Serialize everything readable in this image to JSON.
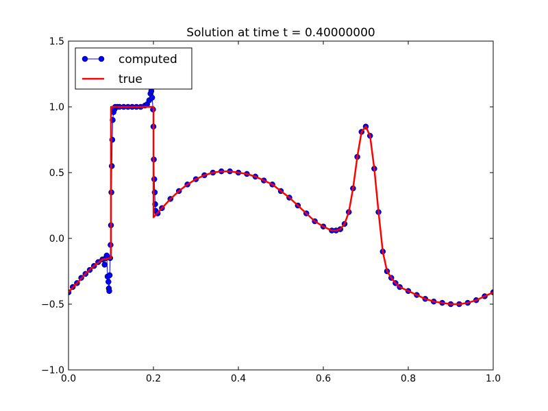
{
  "chart_data": {
    "type": "line",
    "title": "Solution at time t =     0.40000000",
    "xlabel": "",
    "ylabel": "",
    "xlim": [
      0.0,
      1.0
    ],
    "ylim": [
      -1.0,
      1.5
    ],
    "xticks": [
      0.0,
      0.2,
      0.4,
      0.6,
      0.8,
      1.0
    ],
    "xtick_labels": [
      "0.0",
      "0.2",
      "0.4",
      "0.6",
      "0.8",
      "1.0"
    ],
    "yticks": [
      -1.0,
      -0.5,
      0.0,
      0.5,
      1.0,
      1.5
    ],
    "ytick_labels": [
      "−1.0",
      "−0.5",
      "0.0",
      "0.5",
      "1.0",
      "1.5"
    ],
    "grid": false,
    "legend_position": "upper-left",
    "series": [
      {
        "name": "computed",
        "style": "line-with-circle-markers",
        "color": "#0000ff",
        "marker_edge_color": "#000000",
        "x": [
          0.0,
          0.01,
          0.02,
          0.03,
          0.04,
          0.05,
          0.06,
          0.07,
          0.08,
          0.085,
          0.088,
          0.09,
          0.092,
          0.094,
          0.095,
          0.096,
          0.097,
          0.098,
          0.099,
          0.1,
          0.101,
          0.102,
          0.103,
          0.104,
          0.106,
          0.108,
          0.11,
          0.115,
          0.12,
          0.13,
          0.14,
          0.15,
          0.16,
          0.17,
          0.18,
          0.185,
          0.19,
          0.193,
          0.195,
          0.197,
          0.199,
          0.2,
          0.201,
          0.202,
          0.203,
          0.204,
          0.205,
          0.21,
          0.22,
          0.24,
          0.26,
          0.28,
          0.3,
          0.32,
          0.34,
          0.36,
          0.38,
          0.4,
          0.42,
          0.44,
          0.46,
          0.48,
          0.5,
          0.52,
          0.54,
          0.56,
          0.58,
          0.6,
          0.62,
          0.63,
          0.64,
          0.65,
          0.66,
          0.67,
          0.68,
          0.69,
          0.7,
          0.71,
          0.72,
          0.73,
          0.74,
          0.75,
          0.76,
          0.77,
          0.78,
          0.8,
          0.82,
          0.84,
          0.86,
          0.88,
          0.9,
          0.92,
          0.94,
          0.96,
          0.98,
          1.0
        ],
        "y": [
          -0.41,
          -0.37,
          -0.34,
          -0.3,
          -0.27,
          -0.24,
          -0.21,
          -0.18,
          -0.16,
          -0.2,
          -0.15,
          -0.13,
          -0.29,
          -0.33,
          -0.38,
          -0.4,
          -0.28,
          -0.15,
          -0.05,
          0.1,
          0.35,
          0.55,
          0.75,
          0.9,
          0.96,
          0.98,
          1.0,
          1.0,
          1.0,
          1.0,
          1.0,
          1.0,
          1.0,
          1.0,
          1.01,
          1.02,
          1.05,
          1.1,
          1.12,
          1.07,
          0.98,
          0.85,
          0.6,
          0.45,
          0.35,
          0.26,
          0.21,
          0.19,
          0.23,
          0.3,
          0.36,
          0.41,
          0.45,
          0.48,
          0.5,
          0.51,
          0.51,
          0.5,
          0.49,
          0.47,
          0.44,
          0.41,
          0.36,
          0.31,
          0.25,
          0.19,
          0.13,
          0.09,
          0.06,
          0.06,
          0.07,
          0.11,
          0.2,
          0.38,
          0.62,
          0.81,
          0.85,
          0.78,
          0.53,
          0.2,
          -0.1,
          -0.25,
          -0.3,
          -0.34,
          -0.37,
          -0.4,
          -0.43,
          -0.46,
          -0.48,
          -0.49,
          -0.5,
          -0.5,
          -0.49,
          -0.47,
          -0.44,
          -0.41
        ]
      },
      {
        "name": "true",
        "style": "line",
        "color": "#ff0000",
        "x": [
          0.0,
          0.02,
          0.04,
          0.06,
          0.08,
          0.0999,
          0.1,
          0.2,
          0.2001,
          0.22,
          0.24,
          0.26,
          0.28,
          0.3,
          0.32,
          0.34,
          0.36,
          0.38,
          0.4,
          0.42,
          0.44,
          0.46,
          0.48,
          0.5,
          0.52,
          0.54,
          0.56,
          0.58,
          0.6,
          0.62,
          0.63,
          0.64,
          0.65,
          0.66,
          0.67,
          0.68,
          0.69,
          0.7,
          0.71,
          0.72,
          0.73,
          0.74,
          0.75,
          0.76,
          0.77,
          0.78,
          0.8,
          0.82,
          0.84,
          0.86,
          0.88,
          0.9,
          0.92,
          0.94,
          0.96,
          0.98,
          1.0
        ],
        "y": [
          -0.41,
          -0.34,
          -0.27,
          -0.21,
          -0.16,
          -0.15,
          1.0,
          1.0,
          0.16,
          0.23,
          0.3,
          0.36,
          0.41,
          0.45,
          0.48,
          0.5,
          0.51,
          0.51,
          0.5,
          0.49,
          0.47,
          0.44,
          0.41,
          0.36,
          0.31,
          0.25,
          0.19,
          0.13,
          0.09,
          0.06,
          0.06,
          0.07,
          0.11,
          0.2,
          0.38,
          0.62,
          0.81,
          0.85,
          0.78,
          0.53,
          0.2,
          -0.1,
          -0.25,
          -0.3,
          -0.34,
          -0.37,
          -0.4,
          -0.43,
          -0.46,
          -0.48,
          -0.49,
          -0.5,
          -0.5,
          -0.49,
          -0.47,
          -0.44,
          -0.41
        ]
      }
    ]
  }
}
